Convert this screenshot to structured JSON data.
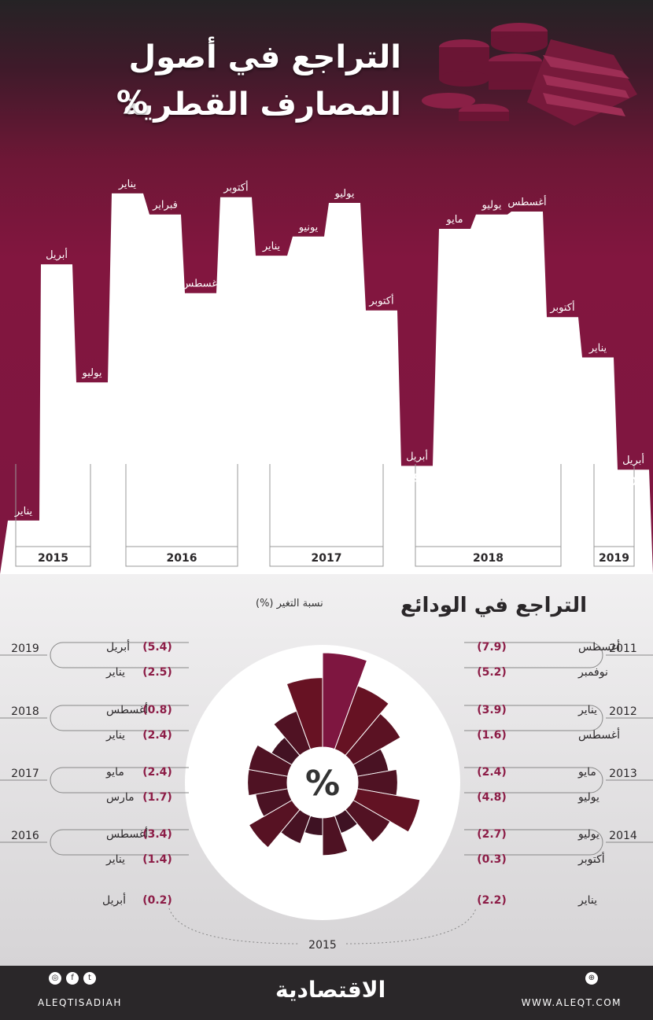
{
  "title": {
    "line1": "التراجع في أصول",
    "line2": "المصارف القطرية",
    "pct": "%"
  },
  "chart_data": {
    "type": "line",
    "title": "التراجع في أصول المصارف القطرية %",
    "points": [
      {
        "year": "2015",
        "label": "يناير",
        "value": -3.54,
        "display": "3.54-"
      },
      {
        "year": "2015",
        "label": "أبريل",
        "value": -0.87,
        "display": "0.87-"
      },
      {
        "year": "2015",
        "label": "يوليو",
        "value": -2.1,
        "display": "2.10-"
      },
      {
        "year": "2016",
        "label": "يناير",
        "value": -0.13,
        "display": "0.13-"
      },
      {
        "year": "2016",
        "label": "فبراير",
        "value": -0.35,
        "display": "0.35-"
      },
      {
        "year": "2016",
        "label": "أغسطس",
        "value": -1.17,
        "display": "1.17-"
      },
      {
        "year": "2016",
        "label": "أكتوبر",
        "value": -0.17,
        "display": "0.17-"
      },
      {
        "year": "2017",
        "label": "يناير",
        "value": -0.78,
        "display": "0.78-"
      },
      {
        "year": "2017",
        "label": "يونيو",
        "value": -0.58,
        "display": "0.58-"
      },
      {
        "year": "2017",
        "label": "يوليو",
        "value": -0.23,
        "display": "0.23-"
      },
      {
        "year": "2017",
        "label": "أكتوبر",
        "value": -1.35,
        "display": "1.35-"
      },
      {
        "year": "2018",
        "label": "أبريل",
        "value": -2.97,
        "display": "2.97-"
      },
      {
        "year": "2018",
        "label": "مايو",
        "value": -0.5,
        "display": "0.50-"
      },
      {
        "year": "2018",
        "label": "يوليو",
        "value": -0.35,
        "display": "0.35-"
      },
      {
        "year": "2018",
        "label": "أغسطس",
        "value": -0.32,
        "display": "0.32-"
      },
      {
        "year": "2018",
        "label": "أكتوبر",
        "value": -1.42,
        "display": "1.42-"
      },
      {
        "year": "2019",
        "label": "يناير",
        "value": -1.84,
        "display": "1.84-"
      },
      {
        "year": "2019",
        "label": "أبريل",
        "value": -3.01,
        "display": "3.01-"
      }
    ],
    "year_labels": [
      "2015",
      "2016",
      "2017",
      "2018",
      "2019"
    ]
  },
  "deposits": {
    "title": "التراجع في الودائع",
    "caption": "نسبة التغير (%)",
    "center": "%",
    "left_groups": [
      {
        "year": "2019",
        "items": [
          {
            "month": "أبريل",
            "value": "(5.4)"
          },
          {
            "month": "يناير",
            "value": "(2.5)"
          }
        ]
      },
      {
        "year": "2018",
        "items": [
          {
            "month": "أغسطس",
            "value": "(0.8)"
          },
          {
            "month": "يناير",
            "value": "(2.4)"
          }
        ]
      },
      {
        "year": "2017",
        "items": [
          {
            "month": "مايو",
            "value": "(2.4)"
          },
          {
            "month": "مارس",
            "value": "(1.7)"
          }
        ]
      },
      {
        "year": "2016",
        "items": [
          {
            "month": "أغسطس",
            "value": "(3.4)"
          },
          {
            "month": "يناير",
            "value": "(1.4)"
          }
        ]
      }
    ],
    "right_groups": [
      {
        "year": "2011",
        "items": [
          {
            "month": "أغسطس",
            "value": "(7.9)"
          },
          {
            "month": "نوفمبر",
            "value": "(5.2)"
          }
        ]
      },
      {
        "year": "2012",
        "items": [
          {
            "month": "يناير",
            "value": "(3.9)"
          },
          {
            "month": "أغسطس",
            "value": "(1.6)"
          }
        ]
      },
      {
        "year": "2013",
        "items": [
          {
            "month": "مايو",
            "value": "(2.4)"
          },
          {
            "month": "يوليو",
            "value": "(4.8)"
          }
        ]
      },
      {
        "year": "2014",
        "items": [
          {
            "month": "يوليو",
            "value": "(2.7)"
          },
          {
            "month": "أكتوبر",
            "value": "(0.3)"
          }
        ]
      }
    ],
    "year2015": {
      "year": "2015",
      "left": {
        "month": "أبريل",
        "value": "(0.2)"
      },
      "right": {
        "month": "يناير",
        "value": "(2.2)"
      }
    },
    "values": [
      7.9,
      5.2,
      3.9,
      1.6,
      2.4,
      4.8,
      2.7,
      0.3,
      2.2,
      0.2,
      1.4,
      3.4,
      1.7,
      2.4,
      2.4,
      0.8,
      2.5,
      5.4
    ]
  },
  "footer": {
    "left_handle": "ALEQTISADIAH",
    "logo": "الاقتصادية",
    "website": "WWW.ALEQT.COM"
  },
  "colors": {
    "maroon": "#7e1640",
    "dark": "#2a2729",
    "accent": "#8c1c46"
  }
}
